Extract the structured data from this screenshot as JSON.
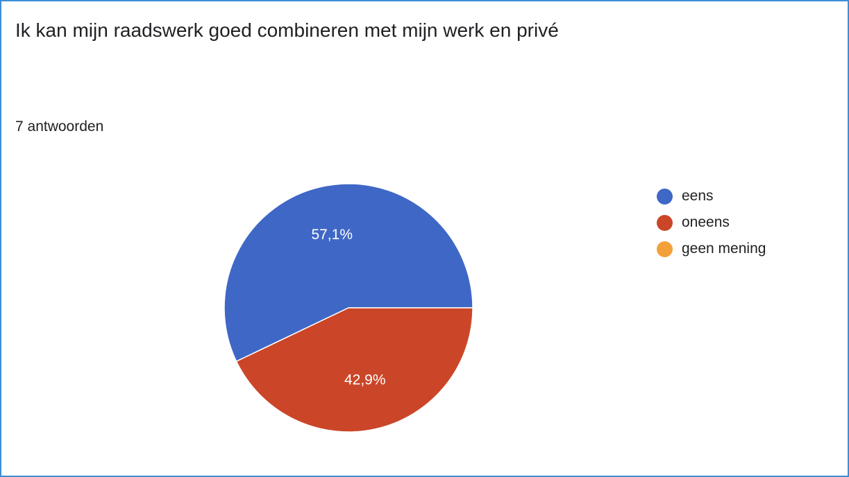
{
  "header": {
    "title": "Ik kan mijn raadswerk goed combineren met mijn werk en privé",
    "responses": "7 antwoorden"
  },
  "chart_data": {
    "type": "pie",
    "title": "Ik kan mijn raadswerk goed combineren met mijn werk en privé",
    "subtitle": "7 antwoorden",
    "legend_position": "right",
    "slices": [
      {
        "label": "eens",
        "value": 57.1,
        "display": "57,1%",
        "color": "#3f67c6"
      },
      {
        "label": "oneens",
        "value": 42.9,
        "display": "42,9%",
        "color": "#cb4628"
      },
      {
        "label": "geen mening",
        "value": 0,
        "display": "",
        "color": "#f2a13a"
      }
    ]
  }
}
